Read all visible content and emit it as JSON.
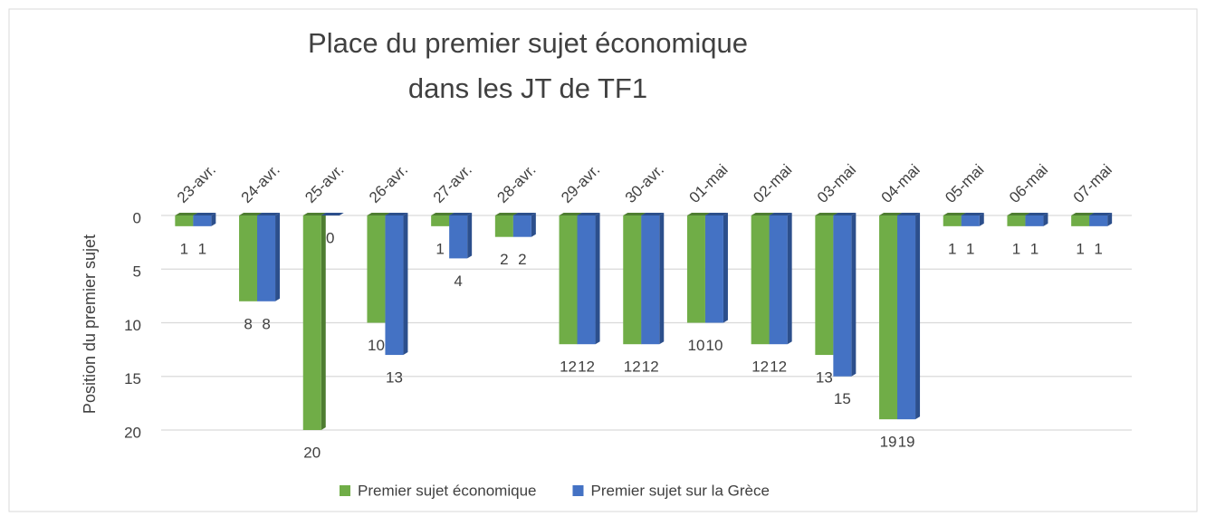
{
  "chart_data": {
    "type": "bar",
    "title": [
      "Place du premier sujet économique",
      "dans les JT de TF1"
    ],
    "y_label": "Position du premier sujet",
    "categories": [
      "23-avr.",
      "24-avr.",
      "25-avr.",
      "26-avr.",
      "27-avr.",
      "28-avr.",
      "29-avr.",
      "30-avr.",
      "01-mai",
      "02-mai",
      "03-mai",
      "04-mai",
      "05-mai",
      "06-mai",
      "07-mai"
    ],
    "series": [
      {
        "name": "Premier sujet économique",
        "color": "#70ad47",
        "side": "#4e7d31",
        "values": [
          1,
          8,
          20,
          10,
          1,
          2,
          12,
          12,
          10,
          12,
          13,
          19,
          1,
          1,
          1
        ]
      },
      {
        "name": "Premier sujet sur la Grèce",
        "color": "#4472c4",
        "side": "#2c4f8c",
        "values": [
          1,
          8,
          0,
          13,
          4,
          2,
          12,
          12,
          10,
          12,
          15,
          19,
          1,
          1,
          1
        ]
      }
    ],
    "ylim": [
      0,
      20
    ],
    "yticks": [
      0,
      5,
      10,
      15,
      20
    ],
    "reversed": true,
    "grid": true,
    "legend": "bottom"
  }
}
